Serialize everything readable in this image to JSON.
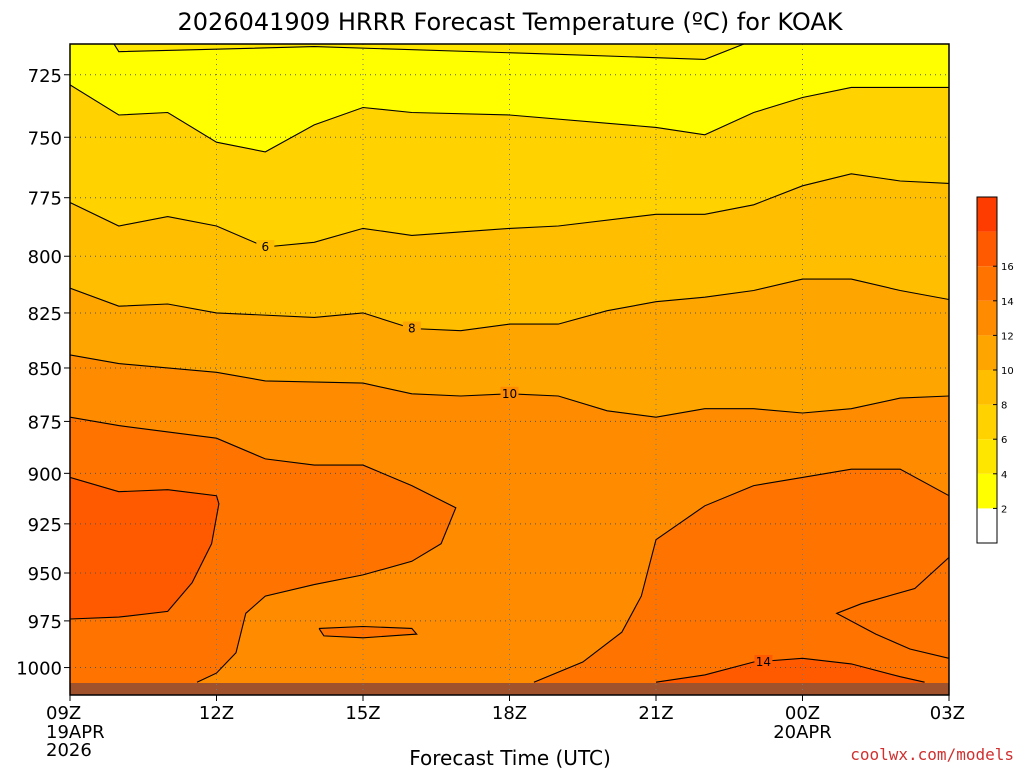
{
  "chart_data": {
    "type": "heatmap",
    "title": "2026041909 HRRR Forecast Temperature (ºC) for KOAK",
    "xlabel": "Forecast Time (UTC)",
    "ylabel": "",
    "x_ticks": [
      {
        "hour": 0,
        "label": "09Z",
        "sub": [
          "19APR",
          "2026"
        ]
      },
      {
        "hour": 3,
        "label": "12Z",
        "sub": []
      },
      {
        "hour": 6,
        "label": "15Z",
        "sub": []
      },
      {
        "hour": 9,
        "label": "18Z",
        "sub": []
      },
      {
        "hour": 12,
        "label": "21Z",
        "sub": []
      },
      {
        "hour": 15,
        "label": "00Z",
        "sub": [
          "20APR"
        ]
      },
      {
        "hour": 18,
        "label": "03Z",
        "sub": []
      }
    ],
    "x_range_hours": [
      0,
      18
    ],
    "y_ticks": [
      725,
      750,
      775,
      800,
      825,
      850,
      875,
      900,
      925,
      950,
      975,
      1000
    ],
    "y_range_hpa": [
      713,
      1015
    ],
    "y_scale": "log-pressure",
    "grid": true,
    "surface_level_hpa": 1008,
    "colorbar": {
      "position": "right",
      "levels": [
        0,
        2,
        4,
        6,
        8,
        10,
        12,
        14,
        16,
        18
      ],
      "tick_labels": [
        "2",
        "4",
        "6",
        "8",
        "10",
        "12",
        "14",
        "16"
      ],
      "colors": [
        "#ffffff",
        "#ffff00",
        "#ffe600",
        "#ffd200",
        "#ffbe00",
        "#ffa500",
        "#ff8c00",
        "#ff7300",
        "#ff5a00",
        "#ff3c00"
      ]
    },
    "contours": [
      {
        "level": 2,
        "label": "",
        "points": [
          [
            0.9,
            713
          ],
          [
            1.0,
            716
          ],
          [
            5.0,
            714
          ],
          [
            10.0,
            717
          ],
          [
            13.0,
            719
          ],
          [
            13.8,
            713
          ]
        ]
      },
      {
        "level": 4,
        "label": "",
        "points": [
          [
            0,
            729
          ],
          [
            1,
            741
          ],
          [
            2,
            740
          ],
          [
            3,
            752
          ],
          [
            4,
            756
          ],
          [
            5,
            745
          ],
          [
            6,
            738
          ],
          [
            7,
            740
          ],
          [
            9,
            741
          ],
          [
            12,
            746
          ],
          [
            13,
            749
          ],
          [
            14,
            740
          ],
          [
            15,
            734
          ],
          [
            16,
            730
          ],
          [
            17,
            730
          ],
          [
            18,
            730
          ]
        ]
      },
      {
        "level": 6,
        "label": "6",
        "label_hour": 4.0,
        "points": [
          [
            0,
            777
          ],
          [
            1,
            787
          ],
          [
            2,
            783
          ],
          [
            3,
            787
          ],
          [
            4,
            796
          ],
          [
            5,
            794
          ],
          [
            6,
            788
          ],
          [
            7,
            791
          ],
          [
            9,
            788
          ],
          [
            10,
            787
          ],
          [
            12,
            782
          ],
          [
            13,
            782
          ],
          [
            14,
            778
          ],
          [
            15,
            770
          ],
          [
            16,
            765
          ],
          [
            17,
            768
          ],
          [
            18,
            769
          ]
        ]
      },
      {
        "level": 8,
        "label": "8",
        "label_hour": 7.0,
        "points": [
          [
            0,
            814
          ],
          [
            1,
            822
          ],
          [
            2,
            821
          ],
          [
            3,
            825
          ],
          [
            5,
            827
          ],
          [
            6,
            825
          ],
          [
            7,
            832
          ],
          [
            8,
            833
          ],
          [
            9,
            830
          ],
          [
            10,
            830
          ],
          [
            11,
            824
          ],
          [
            12,
            820
          ],
          [
            13,
            818
          ],
          [
            14,
            815
          ],
          [
            15,
            810
          ],
          [
            16,
            810
          ],
          [
            17,
            815
          ],
          [
            18,
            819
          ]
        ]
      },
      {
        "level": 10,
        "label": "10",
        "label_hour": 9.0,
        "points": [
          [
            0,
            844
          ],
          [
            1,
            848
          ],
          [
            3,
            852
          ],
          [
            4,
            856
          ],
          [
            6,
            857
          ],
          [
            7,
            862
          ],
          [
            8,
            863
          ],
          [
            9,
            862
          ],
          [
            10,
            863
          ],
          [
            11,
            870
          ],
          [
            12,
            873
          ],
          [
            13,
            869
          ],
          [
            14,
            869
          ],
          [
            15,
            871
          ],
          [
            16,
            869
          ],
          [
            17,
            864
          ],
          [
            18,
            863
          ]
        ]
      },
      {
        "level": 12,
        "label": "",
        "points": [
          [
            0,
            873
          ],
          [
            1,
            877
          ],
          [
            3,
            883
          ],
          [
            4,
            893
          ],
          [
            5,
            896
          ],
          [
            6,
            896
          ],
          [
            7,
            906
          ],
          [
            7.9,
            917
          ],
          [
            7.6,
            935
          ],
          [
            7.0,
            944
          ],
          [
            6.0,
            951
          ],
          [
            5.0,
            956
          ],
          [
            4.0,
            962
          ],
          [
            3.6,
            971
          ],
          [
            3.4,
            992
          ],
          [
            3,
            1003
          ],
          [
            2.6,
            1008
          ]
        ]
      },
      {
        "level": 12,
        "label": "",
        "points": [
          [
            9.5,
            1008
          ],
          [
            10.5,
            997
          ],
          [
            11.3,
            981
          ],
          [
            11.7,
            962
          ],
          [
            12,
            933
          ],
          [
            13,
            916
          ],
          [
            14,
            906
          ],
          [
            15,
            902
          ],
          [
            16,
            898
          ],
          [
            17,
            898
          ],
          [
            18,
            911
          ]
        ]
      },
      {
        "level": 12,
        "label": "",
        "points": [
          [
            18,
            942
          ],
          [
            17.3,
            958
          ],
          [
            16.2,
            966
          ],
          [
            15.7,
            971
          ],
          [
            16.5,
            982
          ],
          [
            17.2,
            990
          ],
          [
            18,
            995
          ]
        ]
      },
      {
        "level": 12,
        "label": "",
        "points": [
          [
            5.1,
            979
          ],
          [
            6.0,
            978
          ],
          [
            7.0,
            979
          ],
          [
            7.1,
            982
          ],
          [
            6.0,
            984
          ],
          [
            5.2,
            983
          ],
          [
            5.1,
            979
          ]
        ]
      },
      {
        "level": 14,
        "label": "",
        "points": [
          [
            0,
            902
          ],
          [
            1,
            909
          ],
          [
            2,
            908
          ],
          [
            3,
            911
          ],
          [
            3.05,
            915
          ],
          [
            2.9,
            935
          ],
          [
            2.5,
            955
          ],
          [
            2,
            970
          ],
          [
            1,
            973
          ],
          [
            0,
            974
          ]
        ]
      },
      {
        "level": 14,
        "label": "14",
        "label_hour": 14.2,
        "points": [
          [
            12,
            1008
          ],
          [
            13,
            1004
          ],
          [
            14,
            997
          ],
          [
            15,
            995
          ],
          [
            16,
            998
          ],
          [
            17,
            1005
          ],
          [
            17.5,
            1008
          ]
        ]
      }
    ]
  },
  "credit": "coolwx.com/models"
}
